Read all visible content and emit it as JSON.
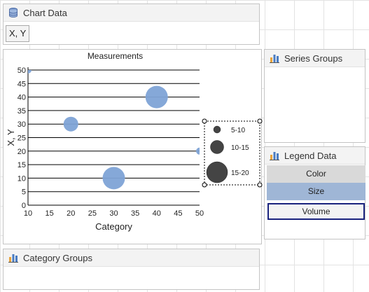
{
  "chart_data_panel": {
    "title": "Chart Data",
    "chip": "X, Y"
  },
  "series_groups_panel": {
    "title": "Series Groups"
  },
  "legend_data_panel": {
    "title": "Legend Data",
    "items": [
      "Color",
      "Size",
      "Volume"
    ]
  },
  "category_groups_panel": {
    "title": "Category Groups"
  },
  "chart_data": {
    "type": "bubble",
    "title": "Measurements",
    "xlabel": "Category",
    "ylabel": "X, Y",
    "xlim": [
      10,
      50
    ],
    "ylim": [
      0,
      50
    ],
    "x_ticks": [
      10,
      15,
      20,
      25,
      30,
      35,
      40,
      45,
      50
    ],
    "y_ticks": [
      0,
      5,
      10,
      15,
      20,
      25,
      30,
      35,
      40,
      45,
      50
    ],
    "grid": "horizontal",
    "legend_position": "right",
    "bubble_color": "#7ea3d6",
    "points": [
      {
        "x": 10,
        "y": 50,
        "size": 5
      },
      {
        "x": 20,
        "y": 30,
        "size": 10
      },
      {
        "x": 30,
        "y": 10,
        "size": 15
      },
      {
        "x": 40,
        "y": 40,
        "size": 15
      },
      {
        "x": 50,
        "y": 20,
        "size": 5
      }
    ],
    "legend": [
      {
        "label": "5-10",
        "size": 5
      },
      {
        "label": "10-15",
        "size": 10
      },
      {
        "label": "15-20",
        "size": 15
      }
    ]
  }
}
